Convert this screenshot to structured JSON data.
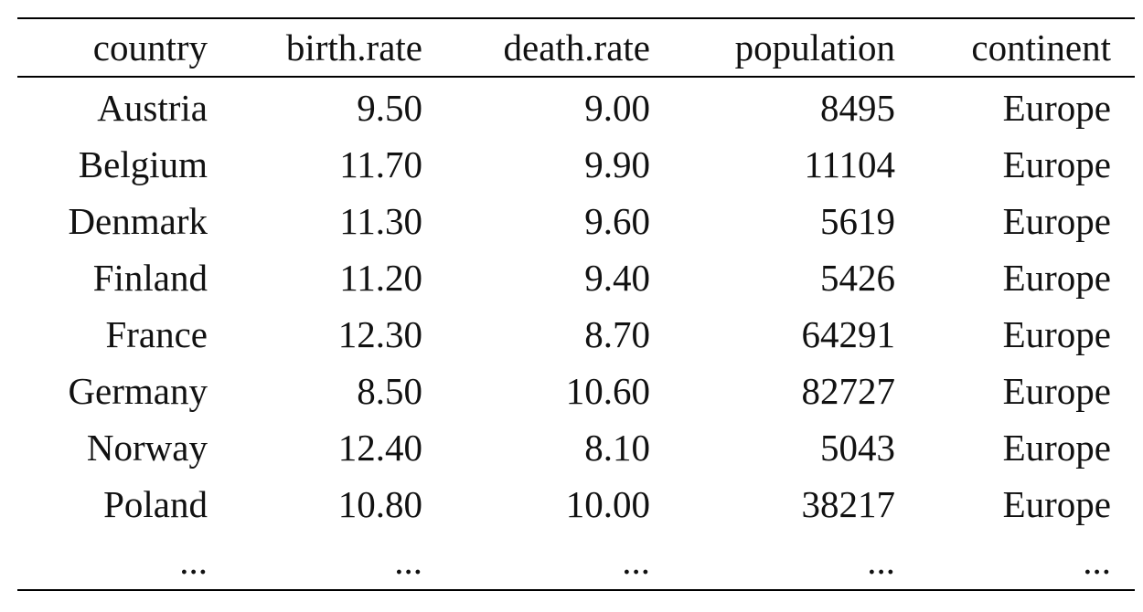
{
  "table": {
    "headers": [
      "country",
      "birth.rate",
      "death.rate",
      "population",
      "continent"
    ],
    "rows": [
      [
        "Austria",
        "9.50",
        "9.00",
        "8495",
        "Europe"
      ],
      [
        "Belgium",
        "11.70",
        "9.90",
        "11104",
        "Europe"
      ],
      [
        "Denmark",
        "11.30",
        "9.60",
        "5619",
        "Europe"
      ],
      [
        "Finland",
        "11.20",
        "9.40",
        "5426",
        "Europe"
      ],
      [
        "France",
        "12.30",
        "8.70",
        "64291",
        "Europe"
      ],
      [
        "Germany",
        "8.50",
        "10.60",
        "82727",
        "Europe"
      ],
      [
        "Norway",
        "12.40",
        "8.10",
        "5043",
        "Europe"
      ],
      [
        "Poland",
        "10.80",
        "10.00",
        "38217",
        "Europe"
      ],
      [
        "...",
        "...",
        "...",
        "...",
        "..."
      ]
    ]
  }
}
